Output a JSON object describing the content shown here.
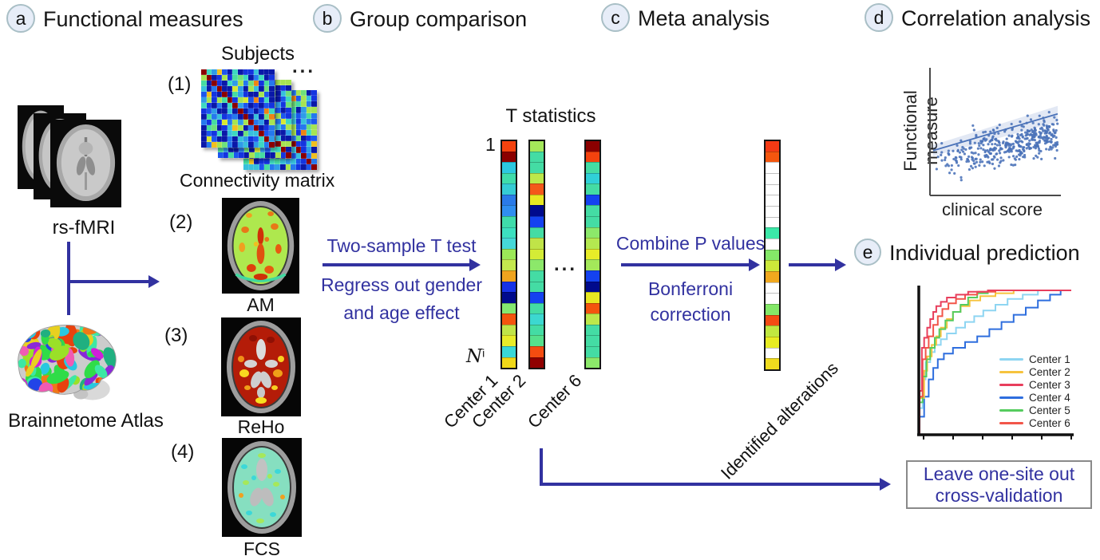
{
  "accent_blue": "#3232a0",
  "headers": {
    "a": {
      "badge": "a",
      "title": "Functional measures"
    },
    "b": {
      "badge": "b",
      "title": "Group comparison"
    },
    "c": {
      "badge": "c",
      "title": "Meta analysis"
    },
    "d": {
      "badge": "d",
      "title": "Correlation analysis"
    },
    "e": {
      "badge": "e",
      "title": "Individual prediction"
    }
  },
  "inputs": {
    "rs_fmri": "rs-fMRI",
    "atlas": "Brainnetome Atlas"
  },
  "measures": {
    "subjects": "Subjects",
    "dots": "...",
    "items": [
      {
        "num": "(1)",
        "label": "Connectivity matrix"
      },
      {
        "num": "(2)",
        "label": "AM"
      },
      {
        "num": "(3)",
        "label": "ReHo"
      },
      {
        "num": "(4)",
        "label": "FCS"
      }
    ]
  },
  "group_comparison": {
    "line1": "Two-sample T test",
    "line2": "Regress out gender",
    "line3": "and age effect"
  },
  "t_statistics": {
    "title": "T statistics",
    "first_row": "1",
    "last_row_base": "N",
    "last_row_sup": "i",
    "dots": "...",
    "columns": [
      {
        "label": "Center 1",
        "cells": [
          "#f4420e",
          "#8b0000",
          "#2cc8e0",
          "#3fdcaa",
          "#35ccd4",
          "#2a7ae8",
          "#2f8ef0",
          "#3fdcaa",
          "#3ce0c0",
          "#45d8d8",
          "#9ce858",
          "#c4e84e",
          "#f0a41e",
          "#1632e8",
          "#000a8c",
          "#84e870",
          "#f4540e",
          "#c0e448",
          "#e8ec28",
          "#38d8d8",
          "#f0d818"
        ]
      },
      {
        "label": "Center 2",
        "cells": [
          "#a4e85a",
          "#44dca4",
          "#44dca4",
          "#bce84a",
          "#f4581a",
          "#e8e822",
          "#000a8c",
          "#1442f0",
          "#44dca4",
          "#c0e448",
          "#d4ec36",
          "#8ce86a",
          "#44dca4",
          "#44dca4",
          "#1442f0",
          "#44dca4",
          "#3cd8d0",
          "#44dca4",
          "#56e08c",
          "#f44c10",
          "#900000"
        ]
      },
      {
        "label": "Center 6",
        "cells": [
          "#8b0000",
          "#f4420e",
          "#44dca4",
          "#30d0d8",
          "#44dca4",
          "#1442f0",
          "#44dca4",
          "#44dca4",
          "#8ce86a",
          "#b4e850",
          "#e8ec28",
          "#a4e85a",
          "#1442f0",
          "#000a8c",
          "#e8e822",
          "#f4540e",
          "#bce84a",
          "#44dca4",
          "#44dca4",
          "#44dca4",
          "#8ce86a"
        ]
      }
    ]
  },
  "meta_analysis": {
    "line1": "Combine P values",
    "line2": "Bonferroni",
    "line3": "correction",
    "column": {
      "label": "Identified alterations",
      "cells": [
        "#f43a14",
        "#f4560e",
        "#ffffff",
        "#ffffff",
        "#ffffff",
        "#ffffff",
        "#ffffff",
        "#ffffff",
        "#3ce8a8",
        "#ffffff",
        "#84e868",
        "#cce83a",
        "#f0a81e",
        "#ffffff",
        "#ffffff",
        "#84e868",
        "#f44c14",
        "#c0e840",
        "#e8ec22",
        "#ffffff",
        "#f0dc1e"
      ]
    }
  },
  "loocv": {
    "line1": "Leave one-site out",
    "line2": "cross-validation"
  },
  "matrix": {
    "size": 14,
    "diagonal": "#8b0000",
    "seeds": [
      5,
      6,
      7
    ],
    "palette": [
      "#0a18a8",
      "#1434e0",
      "#1c56ee",
      "#2578ee",
      "#2f9ce8",
      "#38c0dc",
      "#3ed8c0",
      "#46dca2",
      "#6ee07c",
      "#a6e452",
      "#d8e832",
      "#f0c020",
      "#ee8414",
      "#e2400c"
    ]
  },
  "atlas_palette": [
    "#e8420e",
    "#f07818",
    "#30dc48",
    "#3ce8a4",
    "#28c8e0",
    "#2244e8",
    "#d020d8",
    "#f05ab4",
    "#8a28d8",
    "#9ae028",
    "#20b080",
    "#e8d020"
  ],
  "chart_data": [
    {
      "type": "scatter",
      "title": "Correlation analysis (schematic)",
      "xlabel": "clinical score",
      "ylabel": "Functional measure",
      "n_points": 420,
      "seed": 9,
      "point_color": "#4a72b8",
      "trend": "positive",
      "regression_line": {
        "x": [
          0,
          1
        ],
        "y": [
          0.38,
          0.72
        ]
      },
      "confidence_band": true,
      "axis_ticks": "none",
      "xlim": [
        0,
        1
      ],
      "ylim": [
        0,
        1
      ]
    },
    {
      "type": "line",
      "subtype": "roc-step",
      "title": "Individual prediction ROC (schematic)",
      "xlim": [
        0,
        1
      ],
      "ylim": [
        0,
        1
      ],
      "legend_position": "lower right",
      "x_ticks_count": 6,
      "series": [
        {
          "name": "Center 1",
          "color": "#8ed5f2",
          "points": [
            [
              0,
              0
            ],
            [
              0.02,
              0.18
            ],
            [
              0.04,
              0.38
            ],
            [
              0.07,
              0.5
            ],
            [
              0.1,
              0.57
            ],
            [
              0.14,
              0.62
            ],
            [
              0.18,
              0.66
            ],
            [
              0.24,
              0.7
            ],
            [
              0.3,
              0.74
            ],
            [
              0.36,
              0.78
            ],
            [
              0.42,
              0.82
            ],
            [
              0.5,
              0.86
            ],
            [
              0.58,
              0.9
            ],
            [
              0.68,
              0.94
            ],
            [
              0.78,
              0.97
            ],
            [
              0.88,
              1
            ],
            [
              1,
              1
            ]
          ]
        },
        {
          "name": "Center 2",
          "color": "#f6c33e",
          "points": [
            [
              0,
              0
            ],
            [
              0.03,
              0.25
            ],
            [
              0.05,
              0.44
            ],
            [
              0.08,
              0.54
            ],
            [
              0.11,
              0.62
            ],
            [
              0.14,
              0.68
            ],
            [
              0.18,
              0.74
            ],
            [
              0.22,
              0.8
            ],
            [
              0.27,
              0.85
            ],
            [
              0.33,
              0.89
            ],
            [
              0.4,
              0.93
            ],
            [
              0.5,
              0.96
            ],
            [
              0.62,
              0.98
            ],
            [
              0.75,
              1
            ],
            [
              1,
              1
            ]
          ]
        },
        {
          "name": "Center 3",
          "color": "#e83e5c",
          "points": [
            [
              0,
              0
            ],
            [
              0.015,
              0.3
            ],
            [
              0.03,
              0.6
            ],
            [
              0.05,
              0.67
            ],
            [
              0.07,
              0.74
            ],
            [
              0.09,
              0.8
            ],
            [
              0.11,
              0.85
            ],
            [
              0.14,
              0.89
            ],
            [
              0.18,
              0.92
            ],
            [
              0.24,
              0.95
            ],
            [
              0.32,
              0.97
            ],
            [
              0.45,
              0.99
            ],
            [
              0.6,
              1
            ],
            [
              1,
              1
            ]
          ]
        },
        {
          "name": "Center 4",
          "color": "#2e6ede",
          "points": [
            [
              0,
              0
            ],
            [
              0.03,
              0.12
            ],
            [
              0.06,
              0.26
            ],
            [
              0.09,
              0.38
            ],
            [
              0.12,
              0.46
            ],
            [
              0.16,
              0.52
            ],
            [
              0.22,
              0.56
            ],
            [
              0.3,
              0.6
            ],
            [
              0.38,
              0.64
            ],
            [
              0.46,
              0.68
            ],
            [
              0.54,
              0.73
            ],
            [
              0.62,
              0.78
            ],
            [
              0.7,
              0.83
            ],
            [
              0.78,
              0.88
            ],
            [
              0.86,
              0.93
            ],
            [
              0.93,
              0.97
            ],
            [
              1,
              1
            ]
          ]
        },
        {
          "name": "Center 5",
          "color": "#55cc5e",
          "points": [
            [
              0,
              0
            ],
            [
              0.02,
              0.22
            ],
            [
              0.045,
              0.4
            ],
            [
              0.07,
              0.52
            ],
            [
              0.1,
              0.6
            ],
            [
              0.13,
              0.67
            ],
            [
              0.17,
              0.73
            ],
            [
              0.22,
              0.79
            ],
            [
              0.27,
              0.85
            ],
            [
              0.32,
              0.9
            ],
            [
              0.38,
              0.95
            ],
            [
              0.45,
              0.98
            ],
            [
              0.55,
              1
            ],
            [
              1,
              1
            ]
          ]
        },
        {
          "name": "Center 6",
          "color": "#f25549",
          "points": [
            [
              0,
              0
            ],
            [
              0.02,
              0.26
            ],
            [
              0.04,
              0.52
            ],
            [
              0.06,
              0.6
            ],
            [
              0.09,
              0.68
            ],
            [
              0.12,
              0.76
            ],
            [
              0.15,
              0.82
            ],
            [
              0.19,
              0.87
            ],
            [
              0.24,
              0.91
            ],
            [
              0.3,
              0.94
            ],
            [
              0.38,
              0.97
            ],
            [
              0.5,
              0.99
            ],
            [
              0.65,
              1
            ],
            [
              1,
              1
            ]
          ]
        }
      ]
    }
  ]
}
